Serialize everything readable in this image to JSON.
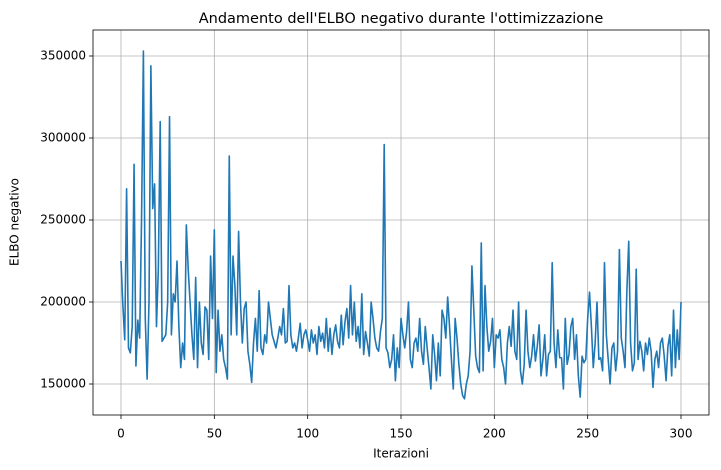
{
  "chart_data": {
    "type": "line",
    "title": "Andamento dell'ELBO negativo durante l'ottimizzazione",
    "xlabel": "Iterazioni",
    "ylabel": "ELBO negativo",
    "xlim": [
      -15,
      315
    ],
    "xticks": [
      0,
      50,
      100,
      150,
      200,
      250,
      300
    ],
    "ylim": [
      131100,
      365850
    ],
    "yticks": [
      150000,
      200000,
      250000,
      300000,
      350000
    ],
    "grid": true,
    "series": [
      {
        "color": "#1f77b4",
        "values": [
          225000,
          198000,
          177000,
          269000,
          172000,
          169000,
          185000,
          284000,
          161000,
          189000,
          178000,
          250000,
          353000,
          190000,
          153000,
          200000,
          344000,
          257000,
          272000,
          185000,
          220000,
          310000,
          176000,
          178000,
          180000,
          200000,
          313000,
          180000,
          205000,
          200000,
          225000,
          185000,
          160000,
          175000,
          165000,
          247000,
          220000,
          200000,
          180000,
          165000,
          215000,
          160000,
          200000,
          175000,
          168000,
          197000,
          195000,
          165000,
          228000,
          190000,
          244000,
          157000,
          195000,
          170000,
          180000,
          165000,
          160000,
          153000,
          289000,
          180000,
          228000,
          210000,
          180000,
          243000,
          200000,
          175000,
          196000,
          200000,
          170000,
          162000,
          151000,
          175000,
          190000,
          170000,
          207000,
          172000,
          168000,
          180000,
          175000,
          200000,
          190000,
          180000,
          176000,
          172000,
          178000,
          185000,
          180000,
          196000,
          175000,
          176000,
          210000,
          180000,
          172000,
          175000,
          170000,
          178000,
          187000,
          172000,
          180000,
          183000,
          177000,
          170000,
          183000,
          175000,
          180000,
          168000,
          185000,
          176000,
          181000,
          172000,
          190000,
          170000,
          184000,
          168000,
          180000,
          186000,
          176000,
          172000,
          192000,
          174000,
          188000,
          196000,
          178000,
          210000,
          180000,
          200000,
          176000,
          185000,
          172000,
          205000,
          168000,
          182000,
          175000,
          167000,
          200000,
          190000,
          178000,
          172000,
          170000,
          182000,
          190000,
          296000,
          172000,
          169000,
          160000,
          165000,
          180000,
          152000,
          172000,
          160000,
          190000,
          180000,
          172000,
          182000,
          200000,
          165000,
          160000,
          175000,
          178000,
          170000,
          190000,
          170000,
          162000,
          185000,
          172000,
          160000,
          147000,
          180000,
          168000,
          152000,
          175000,
          155000,
          195000,
          190000,
          178000,
          203000,
          185000,
          165000,
          147000,
          190000,
          178000,
          162000,
          150000,
          143000,
          141000,
          150000,
          155000,
          170000,
          222000,
          195000,
          167000,
          160000,
          157000,
          236000,
          158000,
          210000,
          185000,
          170000,
          176000,
          190000,
          160000,
          180000,
          178000,
          183000,
          165000,
          160000,
          150000,
          175000,
          185000,
          173000,
          195000,
          170000,
          165000,
          200000,
          158000,
          150000,
          162000,
          195000,
          170000,
          160000,
          167000,
          180000,
          164000,
          173000,
          186000,
          155000,
          165000,
          180000,
          155000,
          168000,
          170000,
          224000,
          175000,
          160000,
          183000,
          166000,
          166000,
          147000,
          190000,
          162000,
          168000,
          185000,
          190000,
          165000,
          180000,
          155000,
          142000,
          167000,
          163000,
          165000,
          190000,
          206000,
          185000,
          160000,
          175000,
          200000,
          165000,
          166000,
          158000,
          224000,
          180000,
          165000,
          150000,
          172000,
          175000,
          158000,
          170000,
          232000,
          178000,
          170000,
          160000,
          207000,
          237000,
          175000,
          158000,
          163000,
          220000,
          165000,
          176000,
          170000,
          158000,
          175000,
          168000,
          178000,
          170000,
          148000,
          165000,
          170000,
          160000,
          175000,
          178000,
          167000,
          152000,
          173000,
          180000,
          155000,
          195000,
          160000,
          183000,
          165000,
          200000
        ]
      }
    ]
  }
}
